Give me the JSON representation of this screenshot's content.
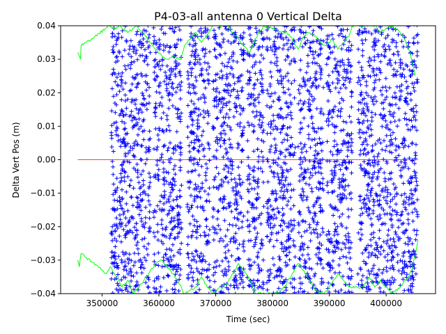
{
  "chart_data": {
    "type": "scatter",
    "title": "P4-03-all antenna 0 Vertical Delta",
    "xlabel": "Time (sec)",
    "ylabel": "Delta Vert Pos (m)",
    "xlim": [
      342700,
      408700
    ],
    "ylim": [
      -0.04,
      0.04
    ],
    "x_ticks": [
      350000,
      360000,
      370000,
      380000,
      390000,
      400000
    ],
    "x_tick_labels": [
      "350000",
      "360000",
      "370000",
      "380000",
      "390000",
      "400000"
    ],
    "y_ticks": [
      -0.04,
      -0.03,
      -0.02,
      -0.01,
      0.0,
      0.01,
      0.02,
      0.03,
      0.04
    ],
    "y_tick_labels": [
      "−0.04",
      "−0.03",
      "−0.02",
      "−0.01",
      "0.00",
      "0.01",
      "0.02",
      "0.03",
      "0.04"
    ],
    "grid": false,
    "legend": "none",
    "series": [
      {
        "style": "scatter",
        "marker": "+",
        "color": "#0000ff",
        "bands": [
          {
            "x_start": 351600,
            "x_end": 356000
          },
          {
            "x_start": 356000,
            "x_end": 358500
          },
          {
            "x_start": 359000,
            "x_end": 364000
          },
          {
            "x_start": 365000,
            "x_end": 369000
          },
          {
            "x_start": 369500,
            "x_end": 375000
          },
          {
            "x_start": 375500,
            "x_end": 378500
          },
          {
            "x_start": 379000,
            "x_end": 384000
          },
          {
            "x_start": 384500,
            "x_end": 389000
          },
          {
            "x_start": 389500,
            "x_end": 394000
          },
          {
            "x_start": 395000,
            "x_end": 400000
          },
          {
            "x_start": 400000,
            "x_end": 405600
          }
        ]
      },
      {
        "style": "line",
        "color": "#00ff00",
        "upper_trace": [
          [
            345700,
            0.032
          ],
          [
            346200,
            0.03
          ],
          [
            346300,
            0.034
          ],
          [
            351300,
            0.04
          ],
          [
            352000,
            0.039
          ],
          [
            353000,
            0.04
          ],
          [
            354500,
            0.038
          ],
          [
            356000,
            0.04
          ],
          [
            358000,
            0.036
          ],
          [
            359500,
            0.033
          ],
          [
            360500,
            0.031
          ],
          [
            361500,
            0.03
          ],
          [
            362500,
            0.031
          ],
          [
            363800,
            0.03
          ],
          [
            364500,
            0.034
          ],
          [
            365500,
            0.036
          ],
          [
            366500,
            0.038
          ],
          [
            367500,
            0.035
          ],
          [
            368500,
            0.037
          ],
          [
            369500,
            0.04
          ],
          [
            372000,
            0.04
          ],
          [
            373000,
            0.038
          ],
          [
            374000,
            0.036
          ],
          [
            375000,
            0.034
          ],
          [
            376000,
            0.032
          ],
          [
            376800,
            0.035
          ],
          [
            377500,
            0.038
          ],
          [
            378500,
            0.04
          ],
          [
            380000,
            0.039
          ],
          [
            382500,
            0.038
          ],
          [
            383500,
            0.036
          ],
          [
            384500,
            0.033
          ],
          [
            385000,
            0.035
          ],
          [
            386000,
            0.038
          ],
          [
            387500,
            0.037
          ],
          [
            388500,
            0.035
          ],
          [
            389500,
            0.034
          ],
          [
            390500,
            0.036
          ],
          [
            391500,
            0.033
          ],
          [
            392500,
            0.035
          ],
          [
            393500,
            0.037
          ],
          [
            394000,
            0.04
          ],
          [
            398000,
            0.04
          ],
          [
            399000,
            0.038
          ],
          [
            400500,
            0.04
          ],
          [
            402000,
            0.039
          ],
          [
            403000,
            0.037
          ],
          [
            404000,
            0.033
          ],
          [
            404600,
            0.029
          ],
          [
            405100,
            0.025
          ]
        ],
        "lower_trace": [
          [
            345700,
            -0.03
          ],
          [
            346000,
            -0.032
          ],
          [
            346300,
            -0.028
          ],
          [
            350800,
            -0.034
          ],
          [
            351500,
            -0.032
          ],
          [
            352500,
            -0.035
          ],
          [
            353500,
            -0.038
          ],
          [
            354500,
            -0.036
          ],
          [
            355500,
            -0.04
          ],
          [
            357000,
            -0.037
          ],
          [
            358500,
            -0.033
          ],
          [
            359500,
            -0.031
          ],
          [
            360500,
            -0.03
          ],
          [
            361500,
            -0.032
          ],
          [
            362500,
            -0.034
          ],
          [
            363500,
            -0.037
          ],
          [
            364500,
            -0.04
          ],
          [
            366500,
            -0.038
          ],
          [
            367500,
            -0.035
          ],
          [
            368500,
            -0.038
          ],
          [
            369500,
            -0.04
          ],
          [
            372000,
            -0.037
          ],
          [
            373000,
            -0.034
          ],
          [
            374000,
            -0.031
          ],
          [
            375000,
            -0.033
          ],
          [
            376000,
            -0.036
          ],
          [
            377000,
            -0.04
          ],
          [
            381000,
            -0.04
          ],
          [
            382500,
            -0.037
          ],
          [
            383500,
            -0.034
          ],
          [
            384500,
            -0.031
          ],
          [
            385500,
            -0.033
          ],
          [
            386500,
            -0.036
          ],
          [
            387500,
            -0.039
          ],
          [
            389000,
            -0.04
          ],
          [
            390500,
            -0.037
          ],
          [
            391500,
            -0.034
          ],
          [
            392500,
            -0.036
          ],
          [
            393500,
            -0.038
          ],
          [
            396000,
            -0.038
          ],
          [
            397000,
            -0.035
          ],
          [
            398000,
            -0.038
          ],
          [
            399000,
            -0.036
          ],
          [
            401000,
            -0.04
          ],
          [
            402500,
            -0.038
          ],
          [
            403500,
            -0.036
          ],
          [
            404500,
            -0.033
          ],
          [
            405200,
            -0.028
          ],
          [
            405600,
            -0.024
          ]
        ]
      },
      {
        "style": "line",
        "color": "#ff0000",
        "points": [
          [
            345700,
            0.0
          ],
          [
            405600,
            0.0
          ]
        ]
      }
    ]
  }
}
